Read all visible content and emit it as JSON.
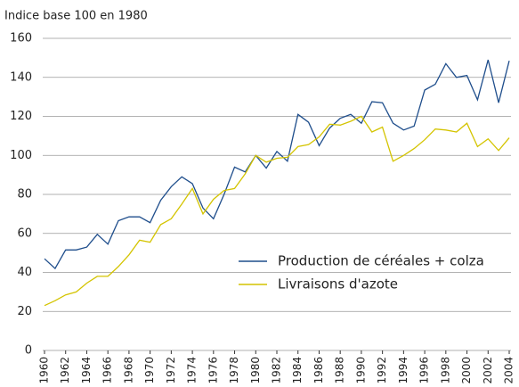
{
  "chart_data": {
    "type": "line",
    "y_label": "Indice base 100 en 1980",
    "x": [
      1960,
      1961,
      1962,
      1963,
      1964,
      1965,
      1966,
      1967,
      1968,
      1969,
      1970,
      1971,
      1972,
      1973,
      1974,
      1975,
      1976,
      1977,
      1978,
      1979,
      1980,
      1981,
      1982,
      1983,
      1984,
      1985,
      1986,
      1987,
      1988,
      1989,
      1990,
      1991,
      1992,
      1993,
      1994,
      1995,
      1996,
      1997,
      1998,
      1999,
      2000,
      2001,
      2002,
      2003,
      2004
    ],
    "series": [
      {
        "name": "Production de céréales + colza",
        "color": "#1f4e8c",
        "values": [
          47,
          42,
          51.5,
          51.5,
          53,
          59.5,
          54.5,
          66.5,
          68.5,
          68.5,
          65.5,
          77,
          84,
          89,
          85.5,
          73,
          67.5,
          80,
          94,
          91.5,
          100,
          93.5,
          102,
          97,
          121,
          117,
          105,
          114,
          119,
          121,
          116.5,
          127.5,
          127,
          116.5,
          113,
          115,
          133.5,
          136.5,
          147,
          140,
          141,
          128.5,
          149,
          127,
          148.5
        ]
      },
      {
        "name": "Livraisons d'azote",
        "color": "#d4c400",
        "values": [
          23,
          25.5,
          28.5,
          30,
          34.5,
          38,
          38,
          43,
          49,
          56.5,
          55.5,
          64.5,
          67.5,
          75,
          83,
          70,
          77.5,
          82,
          83,
          90.5,
          100,
          96.5,
          98.5,
          99,
          104.5,
          105.5,
          109.5,
          116,
          115.5,
          117.5,
          120,
          112,
          114.5,
          97,
          100,
          103.5,
          108,
          113.5,
          113,
          112,
          116.5,
          104.5,
          108.5,
          102.5,
          109
        ]
      }
    ],
    "xlim": [
      1960,
      2004
    ],
    "xticks": [
      1960,
      1962,
      1964,
      1966,
      1968,
      1970,
      1972,
      1974,
      1976,
      1978,
      1980,
      1982,
      1984,
      1986,
      1988,
      1990,
      1992,
      1994,
      1996,
      1998,
      2000,
      2002,
      2004
    ],
    "ylim": [
      0,
      160
    ],
    "yticks": [
      0,
      20,
      40,
      60,
      80,
      100,
      120,
      140,
      160
    ],
    "grid": true
  }
}
